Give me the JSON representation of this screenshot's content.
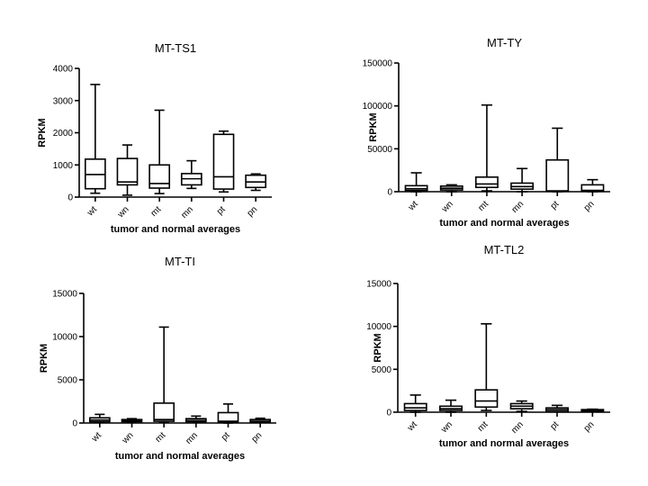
{
  "chart_data": [
    {
      "type": "boxplot",
      "title": "MT-TS1",
      "xlabel": "tumor and normal averages",
      "ylabel": "RPKM",
      "ylim": [
        0,
        4000
      ],
      "yticks": [
        0,
        1000,
        2000,
        3000,
        4000
      ],
      "categories": [
        "wt",
        "wn",
        "mt",
        "mn",
        "pt",
        "pn"
      ],
      "boxes": [
        {
          "min": 120,
          "q1": 260,
          "median": 700,
          "q3": 1180,
          "max": 3500
        },
        {
          "min": 60,
          "q1": 380,
          "median": 470,
          "q3": 1200,
          "max": 1620
        },
        {
          "min": 110,
          "q1": 280,
          "median": 420,
          "q3": 1000,
          "max": 2700
        },
        {
          "min": 270,
          "q1": 380,
          "median": 570,
          "q3": 730,
          "max": 1130
        },
        {
          "min": 160,
          "q1": 250,
          "median": 630,
          "q3": 1950,
          "max": 2050
        },
        {
          "min": 210,
          "q1": 300,
          "median": 470,
          "q3": 680,
          "max": 720
        }
      ]
    },
    {
      "type": "boxplot",
      "title": "MT-TY",
      "xlabel": "tumor and normal averages",
      "ylabel": "RPKM",
      "ylim": [
        0,
        150000
      ],
      "yticks": [
        0,
        50000,
        100000,
        150000
      ],
      "categories": [
        "wt",
        "wn",
        "mt",
        "mn",
        "pt",
        "pn"
      ],
      "boxes": [
        {
          "min": 0,
          "q1": 1500,
          "median": 3500,
          "q3": 7000,
          "max": 22000
        },
        {
          "min": 0,
          "q1": 2000,
          "median": 4000,
          "q3": 6500,
          "max": 8000
        },
        {
          "min": 1000,
          "q1": 5000,
          "median": 9000,
          "q3": 17000,
          "max": 101000
        },
        {
          "min": 0,
          "q1": 3000,
          "median": 6000,
          "q3": 10000,
          "max": 27000
        },
        {
          "min": 0,
          "q1": 500,
          "median": 1000,
          "q3": 37000,
          "max": 74000
        },
        {
          "min": 0,
          "q1": 500,
          "median": 1500,
          "q3": 8000,
          "max": 14000
        }
      ]
    },
    {
      "type": "boxplot",
      "title": "MT-TI",
      "xlabel": "tumor and normal averages",
      "ylabel": "RPKM",
      "ylim": [
        0,
        15000
      ],
      "yticks": [
        0,
        5000,
        10000,
        15000
      ],
      "categories": [
        "wt",
        "wn",
        "mt",
        "mn",
        "pt",
        "pn"
      ],
      "boxes": [
        {
          "min": 50,
          "q1": 150,
          "median": 350,
          "q3": 600,
          "max": 1000
        },
        {
          "min": 50,
          "q1": 150,
          "median": 250,
          "q3": 400,
          "max": 500
        },
        {
          "min": 50,
          "q1": 200,
          "median": 400,
          "q3": 2300,
          "max": 11100
        },
        {
          "min": 50,
          "q1": 150,
          "median": 300,
          "q3": 500,
          "max": 800
        },
        {
          "min": 0,
          "q1": 100,
          "median": 200,
          "q3": 1200,
          "max": 2200
        },
        {
          "min": 50,
          "q1": 100,
          "median": 200,
          "q3": 400,
          "max": 550
        }
      ]
    },
    {
      "type": "boxplot",
      "title": "MT-TL2",
      "xlabel": "tumor and normal averages",
      "ylabel": "RPKM",
      "ylim": [
        0,
        15000
      ],
      "yticks": [
        0,
        5000,
        10000,
        15000
      ],
      "categories": [
        "wt",
        "wn",
        "mt",
        "mn",
        "pt",
        "pn"
      ],
      "boxes": [
        {
          "min": 0,
          "q1": 200,
          "median": 500,
          "q3": 1000,
          "max": 2000
        },
        {
          "min": 0,
          "q1": 200,
          "median": 400,
          "q3": 700,
          "max": 1400
        },
        {
          "min": 200,
          "q1": 600,
          "median": 1300,
          "q3": 2600,
          "max": 10300
        },
        {
          "min": 100,
          "q1": 400,
          "median": 700,
          "q3": 1000,
          "max": 1300
        },
        {
          "min": 50,
          "q1": 100,
          "median": 300,
          "q3": 500,
          "max": 800
        },
        {
          "min": 50,
          "q1": 100,
          "median": 200,
          "q3": 300,
          "max": 350
        }
      ]
    }
  ]
}
